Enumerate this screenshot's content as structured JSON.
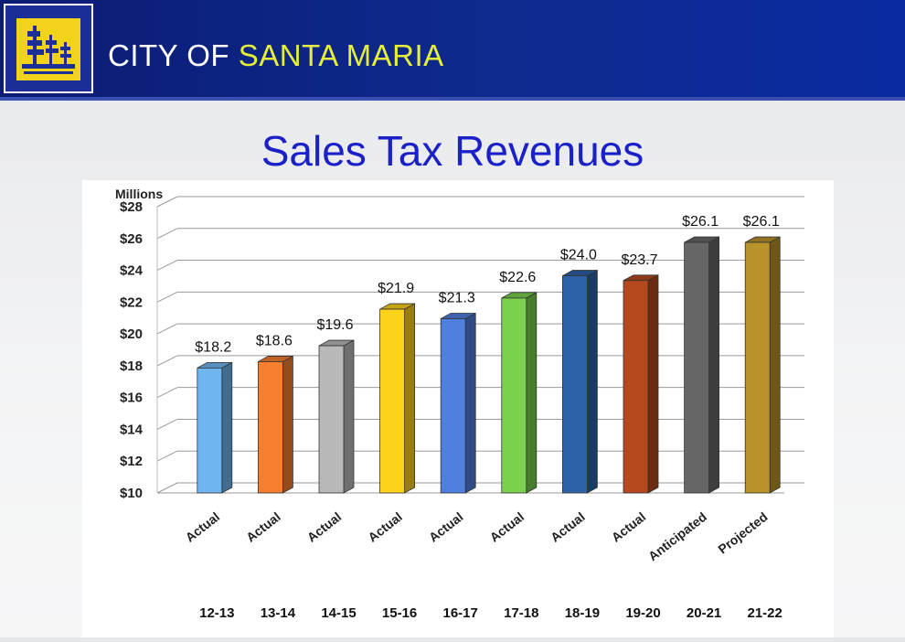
{
  "header": {
    "brand_prefix": "CITY OF ",
    "brand_highlight": "SANTA MARIA",
    "logo_icon": "city-seal-icon",
    "colors": {
      "header_blue": "#0e2a8e",
      "highlight": "#e5ee3a",
      "logo_yellow": "#f2d21b"
    }
  },
  "slide": {
    "title": "Sales Tax Revenues"
  },
  "chart_data": {
    "type": "bar",
    "title": "",
    "ylabel": "Millions",
    "xlabel": "",
    "ylim": [
      10,
      28
    ],
    "yticks": [
      "$10",
      "$12",
      "$14",
      "$16",
      "$18",
      "$20",
      "$22",
      "$24",
      "$26",
      "$28"
    ],
    "ytick_values": [
      10,
      12,
      14,
      16,
      18,
      20,
      22,
      24,
      26,
      28
    ],
    "grid": true,
    "categories": [
      "12-13",
      "13-14",
      "14-15",
      "15-16",
      "16-17",
      "17-18",
      "18-19",
      "19-20",
      "20-21",
      "21-22"
    ],
    "category_status": [
      "Actual",
      "Actual",
      "Actual",
      "Actual",
      "Actual",
      "Actual",
      "Actual",
      "Actual",
      "Anticipated",
      "Projected"
    ],
    "values": [
      18.2,
      18.6,
      19.6,
      21.9,
      21.3,
      22.6,
      24.0,
      23.7,
      26.1,
      26.1
    ],
    "data_labels": [
      "$18.2",
      "$18.6",
      "$19.6",
      "$21.9",
      "$21.3",
      "$22.6",
      "$24.0",
      "$23.7",
      "$26.1",
      "$26.1"
    ],
    "bar_colors": [
      "#6fb6f0",
      "#f77f2e",
      "#b9b9b9",
      "#fdd21a",
      "#4f7fe0",
      "#7ad14d",
      "#2d62a8",
      "#b5481d",
      "#666666",
      "#b8922a"
    ]
  }
}
